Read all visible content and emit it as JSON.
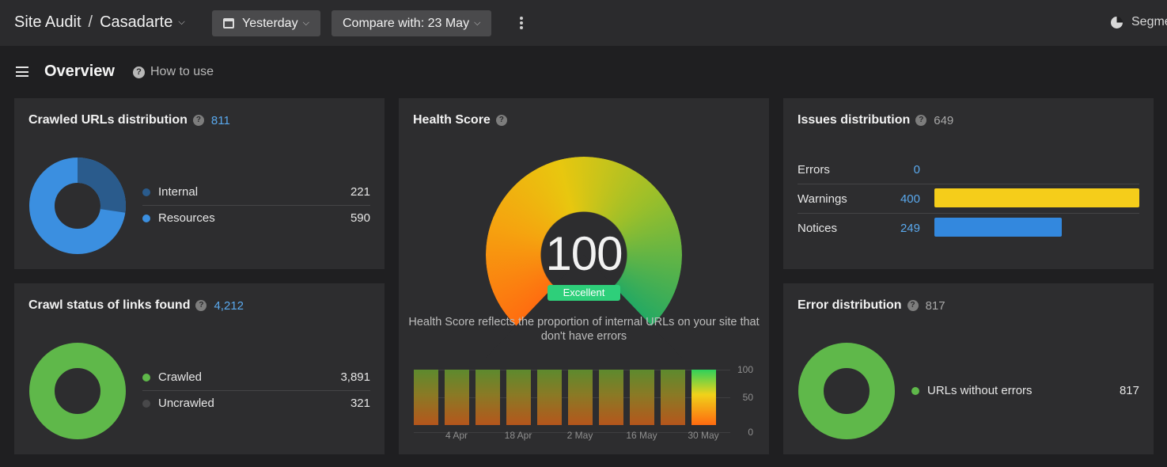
{
  "header": {
    "app": "Site Audit",
    "separator": "/",
    "project": "Casadarte",
    "date_label": "Yesterday",
    "compare_label": "Compare with: 23 May",
    "segments_label": "Segme"
  },
  "subheader": {
    "title": "Overview",
    "how_to_use": "How to use"
  },
  "crawled_urls": {
    "title": "Crawled URLs distribution",
    "count": "811",
    "items": [
      {
        "label": "Internal",
        "value": "221",
        "color": "#2a5b8c"
      },
      {
        "label": "Resources",
        "value": "590",
        "color": "#3b8fe0"
      }
    ]
  },
  "crawl_status": {
    "title": "Crawl status of links found",
    "count": "4,212",
    "items": [
      {
        "label": "Crawled",
        "value": "3,891",
        "color": "#5fb84a"
      },
      {
        "label": "Uncrawled",
        "value": "321",
        "color": "#48484a"
      }
    ]
  },
  "health_score": {
    "title": "Health Score",
    "score": "100",
    "badge": "Excellent",
    "description": "Health Score reflects the proportion of internal URLs on your site that don't have errors"
  },
  "chart_data": {
    "type": "bar",
    "categories": [
      "",
      "4 Apr",
      "",
      "18 Apr",
      "",
      "2 May",
      "",
      "16 May",
      "",
      "30 May"
    ],
    "values": [
      100,
      100,
      100,
      100,
      100,
      100,
      100,
      100,
      100,
      100
    ],
    "yticks": [
      "100",
      "50",
      "0"
    ],
    "ylim": [
      0,
      100
    ]
  },
  "issues": {
    "title": "Issues distribution",
    "count": "649",
    "max": 400,
    "rows": [
      {
        "label": "Errors",
        "value": "0",
        "num": 0,
        "color": "#5aa9ee"
      },
      {
        "label": "Warnings",
        "value": "400",
        "num": 400,
        "color": "#f5cd1a"
      },
      {
        "label": "Notices",
        "value": "249",
        "num": 249,
        "color": "#3388de"
      }
    ]
  },
  "error_dist": {
    "title": "Error distribution",
    "count": "817",
    "items": [
      {
        "label": "URLs without errors",
        "value": "817",
        "color": "#5fb84a"
      }
    ]
  }
}
